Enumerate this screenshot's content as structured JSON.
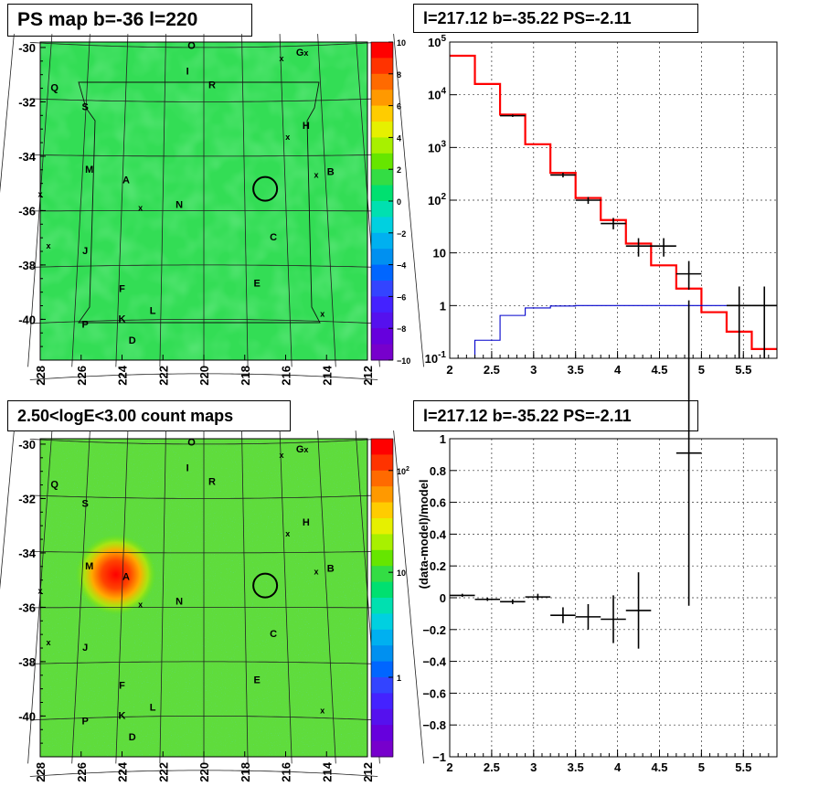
{
  "titles": {
    "ps_map": "PS map b=-36 l=220",
    "spectrum": "l=217.12 b=-35.22 PS=-2.11",
    "count_map": "2.50<logE<3.00 count maps",
    "residual": "l=217.12 b=-35.22 PS=-2.11"
  },
  "chart_data": [
    {
      "type": "heatmap",
      "panel": "ps-map",
      "title": "PS map b=-36 l=220",
      "x_ticks": [
        "228",
        "226",
        "224",
        "222",
        "220",
        "218",
        "216",
        "214",
        "212"
      ],
      "y_ticks": [
        "-30",
        "-32",
        "-34",
        "-36",
        "-38",
        "-40"
      ],
      "xlim": [
        228,
        212
      ],
      "ylim": [
        -41.5,
        -29.8
      ],
      "background": "uniform green (~0)",
      "colorbar": {
        "range": [
          -10,
          10
        ],
        "ticks": [
          "10",
          "8",
          "6",
          "4",
          "2",
          "0",
          "−2",
          "−4",
          "−6",
          "−8",
          "−10"
        ],
        "colors": [
          "#ff0000",
          "#ff3300",
          "#ff6a00",
          "#ff9900",
          "#ffcc00",
          "#e6f000",
          "#a8f000",
          "#66e600",
          "#33dd44",
          "#00e070",
          "#00e0b0",
          "#00d0e0",
          "#00b0f0",
          "#0090f0",
          "#0066ff",
          "#3344ff",
          "#4422ff",
          "#5511ee",
          "#6600dd",
          "#7700cc"
        ]
      },
      "labels": [
        "O",
        "G",
        "I",
        "R",
        "Q",
        "S",
        "H",
        "M",
        "A",
        "B",
        "N",
        "J",
        "C",
        "F",
        "E",
        "L",
        "P",
        "K",
        "D"
      ],
      "markers": [
        "x",
        "x",
        "x",
        "x",
        "x",
        "x",
        "x",
        "x"
      ],
      "circle_center": [
        217,
        -35.2
      ]
    },
    {
      "type": "line",
      "panel": "spectrum",
      "title": "l=217.12 b=-35.22 PS=-2.11",
      "xlim": [
        2,
        5.9
      ],
      "ylim": [
        0.1,
        100000
      ],
      "y_scale": "log",
      "x_ticks": [
        "2",
        "2.5",
        "3",
        "3.5",
        "4",
        "4.5",
        "5",
        "5.5"
      ],
      "y_ticks": [
        "10^-1",
        "1",
        "10",
        "10^2",
        "10^3",
        "10^4",
        "10^5"
      ],
      "grid": true,
      "series": [
        {
          "color": "#ff0000",
          "style": "step",
          "edges": [
            2.0,
            2.3,
            2.6,
            2.9,
            3.2,
            3.5,
            3.8,
            4.1,
            4.4,
            4.7,
            5.0,
            5.3,
            5.6,
            5.9
          ],
          "values": [
            55000,
            16000,
            4200,
            1150,
            330,
            110,
            42,
            15,
            5.8,
            2.1,
            0.75,
            0.32,
            0.15
          ]
        },
        {
          "color": "#0000cc",
          "style": "step",
          "edges": [
            2.0,
            2.3,
            2.6,
            2.9,
            3.2,
            3.5,
            3.8,
            4.1,
            4.4,
            4.7,
            5.0,
            5.3,
            5.6,
            5.9
          ],
          "values": [
            0.05,
            0.22,
            0.65,
            0.9,
            0.98,
            1.0,
            1.0,
            1.0,
            1.0,
            1.0,
            1.0,
            1.0,
            1.0
          ]
        },
        {
          "color": "#000000",
          "style": "errorbar",
          "points": [
            {
              "x": 2.75,
              "y": 4000,
              "xerr": 0.15,
              "ylo": 3800,
              "yhi": 4200
            },
            {
              "x": 3.35,
              "y": 300,
              "xerr": 0.15,
              "ylo": 270,
              "yhi": 330
            },
            {
              "x": 3.65,
              "y": 100,
              "xerr": 0.15,
              "ylo": 85,
              "yhi": 115
            },
            {
              "x": 3.95,
              "y": 36,
              "xerr": 0.15,
              "ylo": 28,
              "yhi": 46
            },
            {
              "x": 4.25,
              "y": 13.5,
              "xerr": 0.15,
              "ylo": 8.5,
              "yhi": 19
            },
            {
              "x": 4.55,
              "y": 13.5,
              "xerr": 0.15,
              "ylo": 8.5,
              "yhi": 19
            },
            {
              "x": 4.85,
              "y": 4,
              "xerr": 0.15,
              "ylo": 2,
              "yhi": 7
            },
            {
              "x": 5.45,
              "y": 1,
              "xerr": 0.15,
              "ylo": 0.1,
              "yhi": 2.3
            },
            {
              "x": 5.75,
              "y": 1,
              "xerr": 0.15,
              "ylo": 0.1,
              "yhi": 2.3
            }
          ]
        }
      ]
    },
    {
      "type": "heatmap",
      "panel": "count-map",
      "title": "2.50<logE<3.00 count maps",
      "x_ticks": [
        "228",
        "226",
        "224",
        "222",
        "220",
        "218",
        "216",
        "214",
        "212"
      ],
      "y_ticks": [
        "-30",
        "-32",
        "-34",
        "-36",
        "-38",
        "-40"
      ],
      "xlim": [
        228,
        212
      ],
      "ylim": [
        -41.5,
        -29.8
      ],
      "hotspot_center": [
        224.3,
        -34.8
      ],
      "colorbar": {
        "scale": "log",
        "ticks": [
          "10^2",
          "10",
          "1"
        ],
        "colors": [
          "#ff0000",
          "#ff3300",
          "#ff6a00",
          "#ff9900",
          "#ffcc00",
          "#e6f000",
          "#a8f000",
          "#66e600",
          "#33dd44",
          "#00e070",
          "#00e0b0",
          "#00d0e0",
          "#00b0f0",
          "#0090f0",
          "#0066ff",
          "#3344ff",
          "#4422ff",
          "#5511ee",
          "#6600dd",
          "#7700cc"
        ]
      },
      "labels": [
        "O",
        "G",
        "I",
        "R",
        "Q",
        "S",
        "H",
        "M",
        "A",
        "B",
        "N",
        "J",
        "C",
        "F",
        "E",
        "L",
        "P",
        "K",
        "D"
      ],
      "markers": [
        "x",
        "x",
        "x",
        "x",
        "x",
        "x",
        "x",
        "x"
      ],
      "circle_center": [
        217,
        -35.2
      ]
    },
    {
      "type": "scatter",
      "panel": "residual",
      "title": "l=217.12 b=-35.22 PS=-2.11",
      "ylabel": "(data-model)/model",
      "xlim": [
        2,
        5.9
      ],
      "ylim": [
        -1,
        1
      ],
      "x_ticks": [
        "2",
        "2.5",
        "3",
        "3.5",
        "4",
        "4.5",
        "5",
        "5.5"
      ],
      "y_ticks": [
        "1",
        "0.8",
        "0.6",
        "0.4",
        "0.2",
        "0",
        "−0.2",
        "−0.4",
        "−0.6",
        "−0.8",
        "−1"
      ],
      "grid": true,
      "points": [
        {
          "x": 2.15,
          "y": 0.015,
          "xerr": 0.15,
          "yerr": 0.01
        },
        {
          "x": 2.45,
          "y": -0.01,
          "xerr": 0.15,
          "yerr": 0.01
        },
        {
          "x": 2.75,
          "y": -0.025,
          "xerr": 0.15,
          "yerr": 0.015
        },
        {
          "x": 3.05,
          "y": 0.005,
          "xerr": 0.15,
          "yerr": 0.02
        },
        {
          "x": 3.35,
          "y": -0.11,
          "xerr": 0.15,
          "yerr": 0.05
        },
        {
          "x": 3.65,
          "y": -0.12,
          "xerr": 0.15,
          "yerr": 0.08
        },
        {
          "x": 3.95,
          "y": -0.135,
          "xerr": 0.15,
          "yerr": 0.15
        },
        {
          "x": 4.25,
          "y": -0.08,
          "xerr": 0.15,
          "yerr": 0.24
        },
        {
          "x": 4.85,
          "y": 0.91,
          "xerr": 0.15,
          "yerr": 0.96
        }
      ]
    }
  ]
}
